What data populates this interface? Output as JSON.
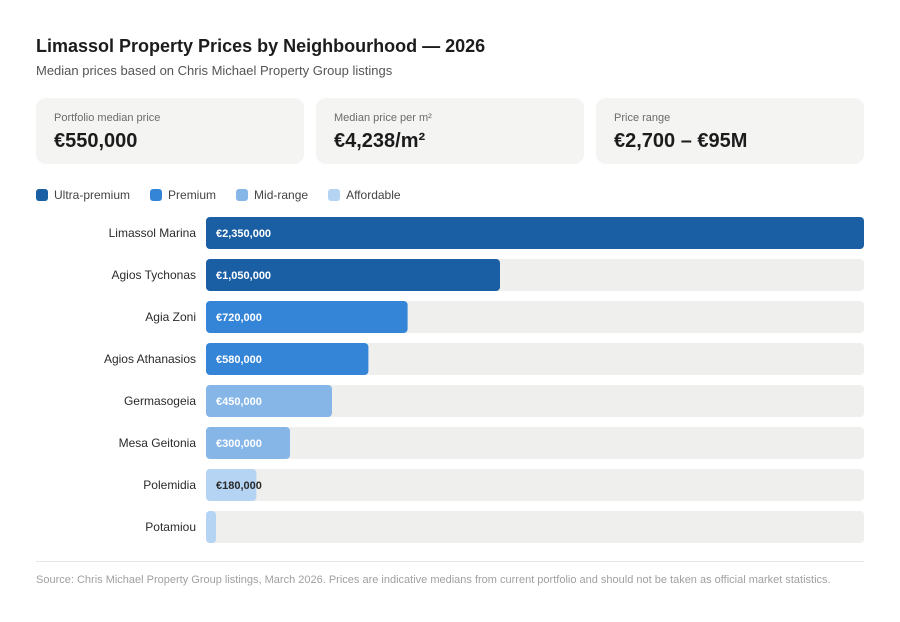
{
  "header": {
    "title": "Limassol Property Prices by Neighbourhood — 2026",
    "subtitle": "Median prices based on Chris Michael Property Group listings"
  },
  "cards": [
    {
      "label": "Portfolio median price",
      "value": "€550,000"
    },
    {
      "label": "Median price per m²",
      "value": "€4,238/m²"
    },
    {
      "label": "Price range",
      "value": "€2,700 – €95M"
    }
  ],
  "legend": [
    {
      "label": "Ultra-premium",
      "color": "#1a5ea4"
    },
    {
      "label": "Premium",
      "color": "#3485d8"
    },
    {
      "label": "Mid-range",
      "color": "#86b6e8"
    },
    {
      "label": "Affordable",
      "color": "#b5d3f3"
    }
  ],
  "chart_data": {
    "type": "bar",
    "orientation": "horizontal",
    "title": "Limassol Property Prices by Neighbourhood — 2026",
    "categories": [
      "Limassol Marina",
      "Agios Tychonas",
      "Agia Zoni",
      "Agios Athanasios",
      "Germasogeia",
      "Mesa Geitonia",
      "Polemidia",
      "Potamiou"
    ],
    "values": [
      2350000,
      1050000,
      720000,
      580000,
      450000,
      300000,
      180000,
      35000
    ],
    "value_labels": [
      "€2,350,000",
      "€1,050,000",
      "€720,000",
      "€580,000",
      "€450,000",
      "€300,000",
      "€180,000",
      ""
    ],
    "tiers": [
      "Ultra-premium",
      "Ultra-premium",
      "Premium",
      "Premium",
      "Mid-range",
      "Mid-range",
      "Affordable",
      "Affordable"
    ],
    "xlim": [
      0,
      2350000
    ],
    "track_color": "#efefee",
    "label_colors": {
      "Ultra-premium": "#ffffff",
      "Premium": "#ffffff",
      "Mid-range": "#ffffff",
      "Affordable": "#2a2a2a"
    }
  },
  "footer": {
    "source": "Source: Chris Michael Property Group listings, March 2026. Prices are indicative medians from current portfolio and should not be taken as official market statistics."
  }
}
